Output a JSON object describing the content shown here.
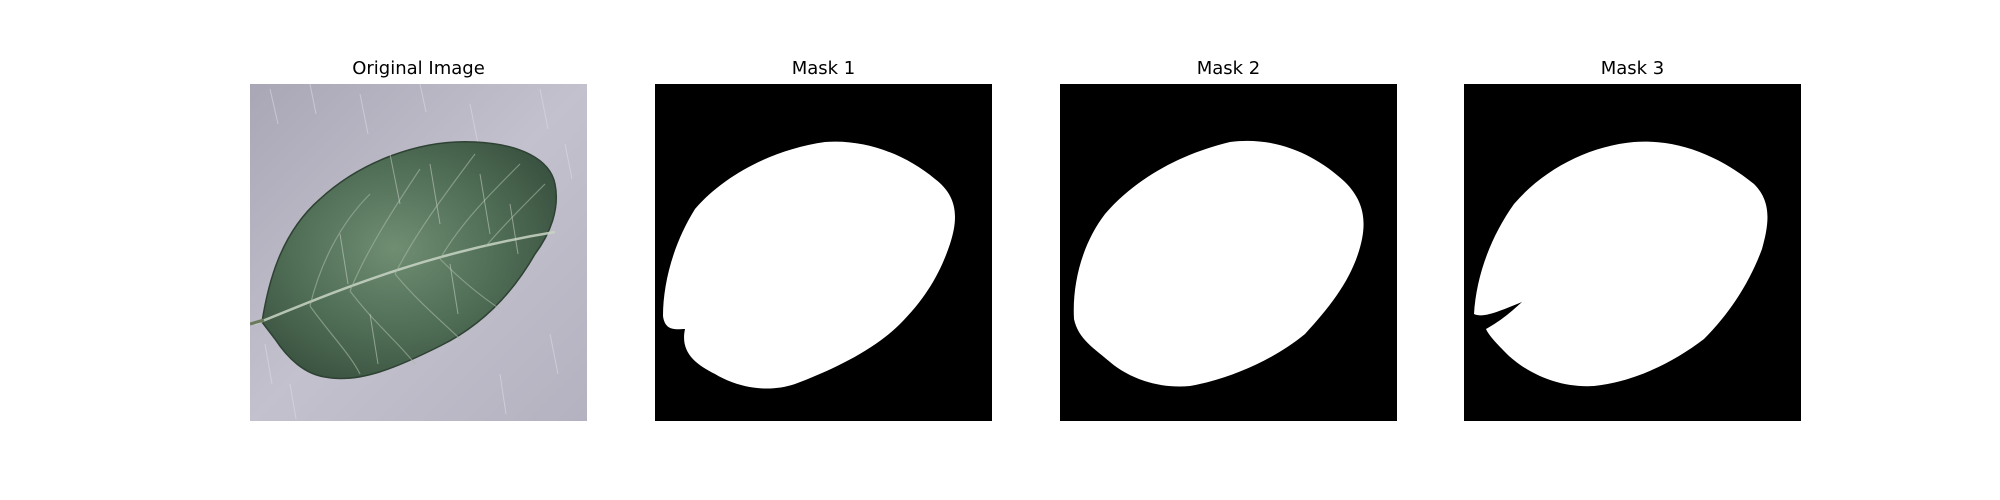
{
  "figure": {
    "panels": [
      {
        "title": "Original Image",
        "kind": "photo",
        "bg_color": "#b9b7c4"
      },
      {
        "title": "Mask 1",
        "kind": "mask",
        "bg_color": "#000000",
        "fg_color": "#ffffff"
      },
      {
        "title": "Mask 2",
        "kind": "mask",
        "bg_color": "#000000",
        "fg_color": "#ffffff"
      },
      {
        "title": "Mask 3",
        "kind": "mask",
        "bg_color": "#000000",
        "fg_color": "#ffffff"
      }
    ]
  },
  "colors": {
    "leaf_dark": "#3e5a45",
    "leaf_mid": "#5e7d63",
    "leaf_light": "#86a18a",
    "midrib": "#c8d6c2",
    "background_paper": "#b9b7c4"
  }
}
